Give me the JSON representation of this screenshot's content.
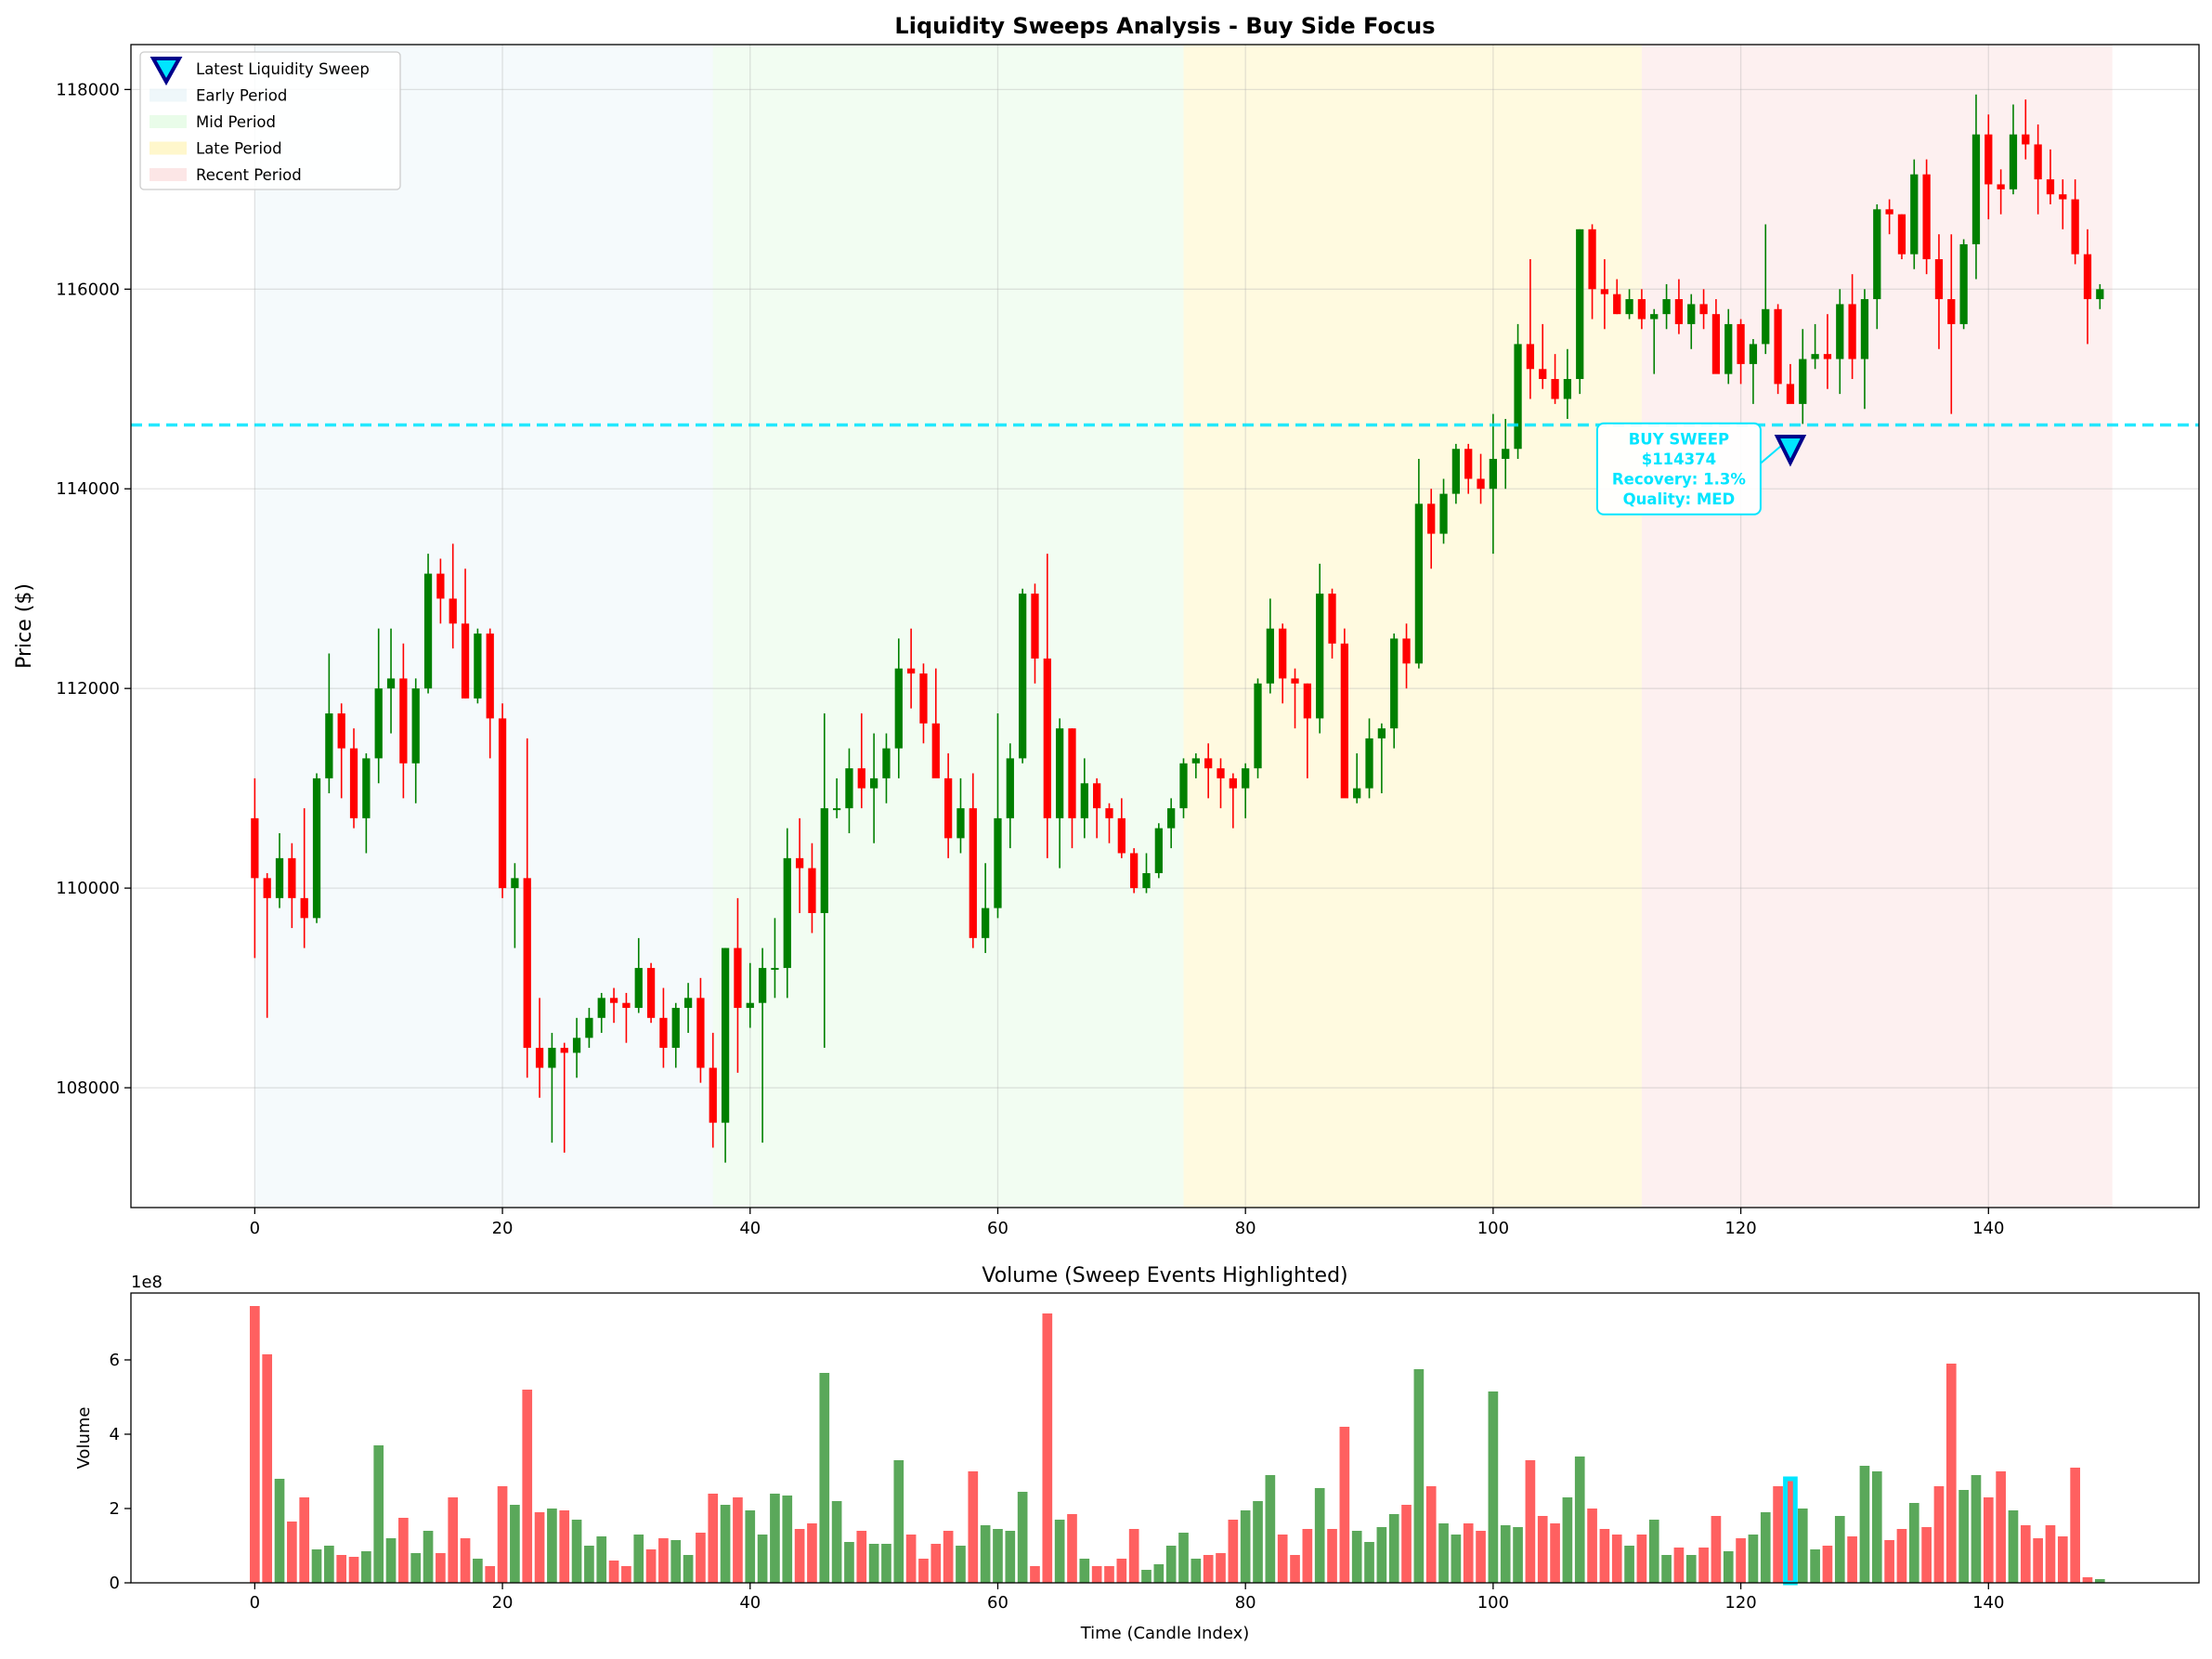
{
  "chart_data": [
    {
      "type": "candlestick",
      "title": "Liquidity Sweeps Analysis - Buy Side Focus",
      "ylabel": "Price ($)",
      "xlabel": "",
      "xlim": [
        -10,
        157
      ],
      "ylim": [
        106800,
        118450
      ],
      "xticks": [
        0,
        20,
        40,
        60,
        80,
        100,
        120,
        140
      ],
      "yticks": [
        108000,
        110000,
        112000,
        114000,
        116000,
        118000
      ],
      "grid": true,
      "legend_position": "top-left",
      "legend": [
        {
          "label": "Latest Liquidity Sweep",
          "kind": "marker",
          "color": "#00e5ff"
        },
        {
          "label": "Early Period",
          "kind": "patch",
          "color": "#add8e6"
        },
        {
          "label": "Mid Period",
          "kind": "patch",
          "color": "#90ee90"
        },
        {
          "label": "Late Period",
          "kind": "patch",
          "color": "#ffd700"
        },
        {
          "label": "Recent Period",
          "kind": "patch",
          "color": "#f08080"
        }
      ],
      "periods": [
        {
          "name": "Early Period",
          "start": 0,
          "end": 37,
          "color": "#add8e6"
        },
        {
          "name": "Mid Period",
          "start": 37,
          "end": 75,
          "color": "#90ee90"
        },
        {
          "name": "Late Period",
          "start": 75,
          "end": 112,
          "color": "#ffd700"
        },
        {
          "name": "Recent Period",
          "start": 112,
          "end": 150,
          "color": "#f08080"
        }
      ],
      "sweep_level": 114640,
      "sweep_marker": {
        "x": 124,
        "y": 114374
      },
      "annotation": {
        "lines": [
          "BUY SWEEP",
          "$114374",
          "Recovery: 1.3%",
          "Quality: MED"
        ],
        "x": 115,
        "y": 114200
      },
      "colors": {
        "up": "#008000",
        "down": "#ff0000",
        "sweep": "#00e5ff",
        "marker_edge": "#00008b"
      },
      "ohlc": [
        [
          110700,
          111100,
          109300,
          110100
        ],
        [
          110100,
          110150,
          108700,
          109900
        ],
        [
          109900,
          110550,
          109800,
          110300
        ],
        [
          110300,
          110450,
          109600,
          109900
        ],
        [
          109900,
          110800,
          109400,
          109700
        ],
        [
          109700,
          111150,
          109650,
          111100
        ],
        [
          111100,
          112350,
          110950,
          111750
        ],
        [
          111750,
          111850,
          110900,
          111400
        ],
        [
          111400,
          111600,
          110600,
          110700
        ],
        [
          110700,
          111350,
          110350,
          111300
        ],
        [
          111300,
          112600,
          111050,
          112000
        ],
        [
          112000,
          112600,
          111550,
          112100
        ],
        [
          112100,
          112450,
          110900,
          111250
        ],
        [
          111250,
          112100,
          110850,
          112000
        ],
        [
          112000,
          113350,
          111950,
          113150
        ],
        [
          113150,
          113300,
          112650,
          112900
        ],
        [
          112900,
          113450,
          112400,
          112650
        ],
        [
          112650,
          113200,
          111900,
          111900
        ],
        [
          111900,
          112600,
          111850,
          112550
        ],
        [
          112550,
          112600,
          111300,
          111700
        ],
        [
          111700,
          111850,
          109900,
          110000
        ],
        [
          110000,
          110250,
          109400,
          110100
        ],
        [
          110100,
          111500,
          108100,
          108400
        ],
        [
          108400,
          108900,
          107900,
          108200
        ],
        [
          108200,
          108550,
          107450,
          108400
        ],
        [
          108400,
          108450,
          107350,
          108350
        ],
        [
          108350,
          108700,
          108100,
          108500
        ],
        [
          108500,
          108800,
          108400,
          108700
        ],
        [
          108700,
          108950,
          108550,
          108900
        ],
        [
          108900,
          109000,
          108650,
          108850
        ],
        [
          108850,
          108950,
          108450,
          108800
        ],
        [
          108800,
          109500,
          108750,
          109200
        ],
        [
          109200,
          109250,
          108650,
          108700
        ],
        [
          108700,
          109000,
          108200,
          108400
        ],
        [
          108400,
          108850,
          108200,
          108800
        ],
        [
          108800,
          109050,
          108550,
          108900
        ],
        [
          108900,
          109100,
          108050,
          108200
        ],
        [
          108200,
          108550,
          107400,
          107650
        ],
        [
          107650,
          109400,
          107250,
          109400
        ],
        [
          109400,
          109900,
          108150,
          108800
        ],
        [
          108800,
          109250,
          108600,
          108850
        ],
        [
          108850,
          109400,
          107450,
          109200
        ],
        [
          109200,
          109700,
          108900,
          109200
        ],
        [
          109200,
          110600,
          108900,
          110300
        ],
        [
          110300,
          110700,
          109750,
          110200
        ],
        [
          110200,
          110450,
          109550,
          109750
        ],
        [
          109750,
          111750,
          108400,
          110800
        ],
        [
          110800,
          111100,
          110700,
          110800
        ],
        [
          110800,
          111400,
          110550,
          111200
        ],
        [
          111200,
          111750,
          110800,
          111000
        ],
        [
          111000,
          111550,
          110450,
          111100
        ],
        [
          111100,
          111550,
          110850,
          111400
        ],
        [
          111400,
          112500,
          111100,
          112200
        ],
        [
          112200,
          112600,
          111800,
          112150
        ],
        [
          112150,
          112250,
          111450,
          111650
        ],
        [
          111650,
          112200,
          111200,
          111100
        ],
        [
          111100,
          111350,
          110300,
          110500
        ],
        [
          110500,
          111100,
          110350,
          110800
        ],
        [
          110800,
          111150,
          109400,
          109500
        ],
        [
          109500,
          110250,
          109350,
          109800
        ],
        [
          109800,
          111750,
          109700,
          110700
        ],
        [
          110700,
          111450,
          110400,
          111300
        ],
        [
          111300,
          113000,
          111250,
          112950
        ],
        [
          112950,
          113050,
          112050,
          112300
        ],
        [
          112300,
          113350,
          110300,
          110700
        ],
        [
          110700,
          111700,
          110200,
          111600
        ],
        [
          111600,
          111600,
          110400,
          110700
        ],
        [
          110700,
          111300,
          110500,
          111050
        ],
        [
          111050,
          111100,
          110500,
          110800
        ],
        [
          110800,
          110850,
          110450,
          110700
        ],
        [
          110700,
          110900,
          110300,
          110350
        ],
        [
          110350,
          110400,
          109950,
          110000
        ],
        [
          110000,
          110350,
          109950,
          110150
        ],
        [
          110150,
          110650,
          110100,
          110600
        ],
        [
          110600,
          110900,
          110400,
          110800
        ],
        [
          110800,
          111300,
          110700,
          111250
        ],
        [
          111250,
          111350,
          111100,
          111300
        ],
        [
          111300,
          111450,
          110900,
          111200
        ],
        [
          111200,
          111300,
          110800,
          111100
        ],
        [
          111100,
          111150,
          110600,
          111000
        ],
        [
          111000,
          111250,
          110700,
          111200
        ],
        [
          111200,
          112100,
          111100,
          112050
        ],
        [
          112050,
          112900,
          111950,
          112600
        ],
        [
          112600,
          112650,
          111850,
          112100
        ],
        [
          112100,
          112200,
          111600,
          112050
        ],
        [
          112050,
          112050,
          111100,
          111700
        ],
        [
          111700,
          113250,
          111550,
          112950
        ],
        [
          112950,
          113000,
          112300,
          112450
        ],
        [
          112450,
          112600,
          110950,
          110900
        ],
        [
          110900,
          111350,
          110850,
          111000
        ],
        [
          111000,
          111700,
          110900,
          111500
        ],
        [
          111500,
          111650,
          110950,
          111600
        ],
        [
          111600,
          112550,
          111400,
          112500
        ],
        [
          112500,
          112650,
          112000,
          112250
        ],
        [
          112250,
          114300,
          112200,
          113850
        ],
        [
          113850,
          114000,
          113200,
          113550
        ],
        [
          113550,
          114100,
          113450,
          113950
        ],
        [
          113950,
          114450,
          113850,
          114400
        ],
        [
          114400,
          114450,
          113950,
          114100
        ],
        [
          114100,
          114350,
          113850,
          114000
        ],
        [
          114000,
          114750,
          113350,
          114300
        ],
        [
          114300,
          114700,
          114000,
          114400
        ],
        [
          114400,
          115650,
          114300,
          115450
        ],
        [
          115450,
          116300,
          114900,
          115200
        ],
        [
          115200,
          115650,
          115000,
          115100
        ],
        [
          115100,
          115350,
          114850,
          114900
        ],
        [
          114900,
          115400,
          114700,
          115100
        ],
        [
          115100,
          116600,
          114950,
          116600
        ],
        [
          116600,
          116650,
          115700,
          116000
        ],
        [
          116000,
          116300,
          115600,
          115950
        ],
        [
          115950,
          116100,
          115750,
          115750
        ],
        [
          115750,
          116000,
          115700,
          115900
        ],
        [
          115900,
          116000,
          115600,
          115700
        ],
        [
          115700,
          115800,
          115150,
          115750
        ],
        [
          115750,
          116050,
          115600,
          115900
        ],
        [
          115900,
          116100,
          115550,
          115650
        ],
        [
          115650,
          115950,
          115400,
          115850
        ],
        [
          115850,
          116000,
          115600,
          115750
        ],
        [
          115750,
          115900,
          115200,
          115150
        ],
        [
          115150,
          115800,
          115050,
          115650
        ],
        [
          115650,
          115700,
          115050,
          115250
        ],
        [
          115250,
          115500,
          114850,
          115450
        ],
        [
          115450,
          116650,
          115350,
          115800
        ],
        [
          115800,
          115850,
          114950,
          115050
        ],
        [
          115050,
          115250,
          114900,
          114850
        ],
        [
          114850,
          115600,
          114650,
          115300
        ],
        [
          115300,
          115650,
          115200,
          115350
        ],
        [
          115350,
          115750,
          115000,
          115300
        ],
        [
          115300,
          116000,
          114950,
          115850
        ],
        [
          115850,
          116150,
          115100,
          115300
        ],
        [
          115300,
          116000,
          114800,
          115900
        ],
        [
          115900,
          116850,
          115600,
          116800
        ],
        [
          116800,
          116900,
          116550,
          116750
        ],
        [
          116750,
          116750,
          116300,
          116350
        ],
        [
          116350,
          117300,
          116200,
          117150
        ],
        [
          117150,
          117300,
          116150,
          116300
        ],
        [
          116300,
          116550,
          115400,
          115900
        ],
        [
          115900,
          116550,
          114750,
          115650
        ],
        [
          115650,
          116500,
          115600,
          116450
        ],
        [
          116450,
          117950,
          116100,
          117550
        ],
        [
          117550,
          117750,
          116700,
          117050
        ],
        [
          117050,
          117200,
          116750,
          117000
        ],
        [
          117000,
          117850,
          116950,
          117550
        ],
        [
          117550,
          117900,
          117300,
          117450
        ],
        [
          117450,
          117650,
          116750,
          117100
        ],
        [
          117100,
          117400,
          116850,
          116950
        ],
        [
          116950,
          117100,
          116600,
          116900
        ],
        [
          116900,
          117100,
          116250,
          116350
        ],
        [
          116350,
          116600,
          115450,
          115900
        ],
        [
          115900,
          116050,
          115800,
          116000
        ]
      ]
    },
    {
      "type": "bar",
      "title": "Volume (Sweep Events Highlighted)",
      "xlabel": "Time (Candle Index)",
      "ylabel": "Volume",
      "offset_text": "1e8",
      "xlim": [
        -10,
        157
      ],
      "ylim": [
        0,
        7.8
      ],
      "xticks": [
        0,
        20,
        40,
        60,
        80,
        100,
        120,
        140
      ],
      "yticks": [
        0,
        2,
        4,
        6
      ],
      "grid": false,
      "highlight_index": 124,
      "colors": {
        "up": "#5aa85a",
        "down": "#ff6060",
        "highlight": "#00e5ff"
      },
      "values": [
        7.45,
        6.15,
        2.8,
        1.65,
        2.3,
        0.9,
        1.0,
        0.75,
        0.7,
        0.85,
        3.7,
        1.2,
        1.75,
        0.8,
        1.4,
        0.8,
        2.3,
        1.2,
        0.65,
        0.45,
        2.6,
        2.1,
        5.2,
        1.9,
        2.0,
        1.95,
        1.7,
        1.0,
        1.25,
        0.6,
        0.45,
        1.3,
        0.9,
        1.2,
        1.15,
        0.75,
        1.35,
        2.4,
        2.1,
        2.3,
        1.95,
        1.3,
        2.4,
        2.35,
        1.45,
        1.6,
        5.65,
        2.2,
        1.1,
        1.4,
        1.05,
        1.05,
        3.3,
        1.3,
        0.65,
        1.05,
        1.4,
        1.0,
        3.0,
        1.55,
        1.45,
        1.4,
        2.45,
        0.45,
        7.25,
        1.7,
        1.85,
        0.65,
        0.45,
        0.45,
        0.65,
        1.45,
        0.35,
        0.5,
        1.0,
        1.35,
        0.65,
        0.75,
        0.8,
        1.7,
        1.95,
        2.2,
        2.9,
        1.3,
        0.75,
        1.45,
        2.55,
        1.45,
        4.2,
        1.4,
        1.1,
        1.5,
        1.85,
        2.1,
        5.75,
        2.6,
        1.6,
        1.3,
        1.6,
        1.4,
        5.15,
        1.55,
        1.5,
        3.3,
        1.8,
        1.6,
        2.3,
        3.4,
        2.0,
        1.45,
        1.3,
        1.0,
        1.3,
        1.7,
        0.75,
        0.95,
        0.75,
        0.95,
        1.8,
        0.85,
        1.2,
        1.3,
        1.9,
        2.6,
        2.8,
        2.0,
        0.9,
        1.0,
        1.8,
        1.25,
        3.15,
        3.0,
        1.15,
        1.45,
        2.15,
        1.5,
        2.6,
        5.9,
        2.5,
        2.9,
        2.3,
        3.0,
        1.95,
        1.55,
        1.2,
        1.55,
        1.25,
        3.1,
        0.15,
        0.1
      ]
    }
  ]
}
